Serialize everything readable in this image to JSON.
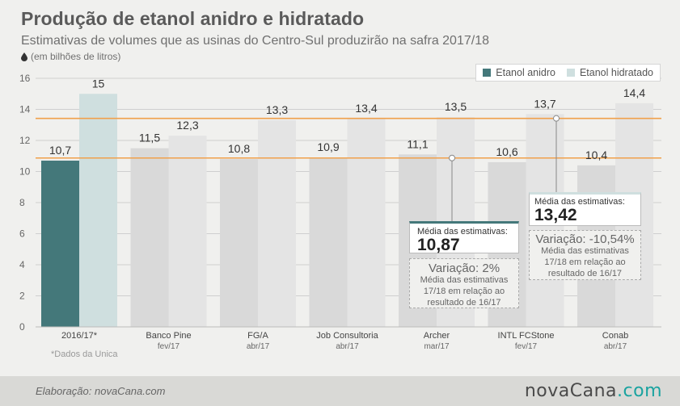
{
  "header": {
    "title": "Produção de etanol anidro e hidratado",
    "subtitle": "Estimativas de volumes que as usinas do Centro-Sul produzirão na safra 2017/18",
    "unit": "(em bilhões de litros)"
  },
  "legend": {
    "anidro": "Etanol anidro",
    "hidratado": "Etanol hidratado"
  },
  "note": "*Dados da Unica",
  "callouts": {
    "anidro": {
      "label": "Média das estimativas:",
      "value": "10,87",
      "variation_title": "Variação: 2%",
      "variation_text_1": "Média das estimativas",
      "variation_text_2": "17/18 em relação ao",
      "variation_text_3": "resultado de 16/17"
    },
    "hidratado": {
      "label": "Média das estimativas:",
      "value": "13,42",
      "variation_title": "Variação: -10,54%",
      "variation_text_1": "Média das estimativas",
      "variation_text_2": "17/18 em relação ao",
      "variation_text_3": "resultado de 16/17"
    }
  },
  "footer": {
    "credit": "Elaboração: novaCana.com",
    "brand_main": "novaCana",
    "brand_suffix": ".com"
  },
  "colors": {
    "anidro_highlight": "#44787a",
    "hidratado_highlight": "#cfdfdf",
    "anidro": "#d9d9d9",
    "hidratado": "#e4e4e4",
    "reference_line": "#f0a04b",
    "grid": "#cfcfcf"
  },
  "chart_data": {
    "type": "bar",
    "categories": [
      "2016/17*",
      "Banco Pine",
      "FG/A",
      "Job Consultoria",
      "Archer",
      "INTL FCStone",
      "Conab"
    ],
    "category_dates": [
      "",
      "fev/17",
      "abr/17",
      "abr/17",
      "mar/17",
      "fev/17",
      "abr/17"
    ],
    "series": [
      {
        "name": "Etanol anidro",
        "values": [
          10.7,
          11.5,
          10.8,
          10.9,
          11.1,
          10.6,
          10.4
        ],
        "labels": [
          "10,7",
          "11,5",
          "10,8",
          "10,9",
          "11,1",
          "10,6",
          "10,4"
        ]
      },
      {
        "name": "Etanol hidratado",
        "values": [
          15,
          12.3,
          13.3,
          13.4,
          13.5,
          13.7,
          14.4
        ],
        "labels": [
          "15",
          "12,3",
          "13,3",
          "13,4",
          "13,5",
          "13,7",
          "14,4"
        ]
      }
    ],
    "reference_lines": [
      10.87,
      13.42
    ],
    "ylim": [
      0,
      16
    ],
    "yticks": [
      0,
      2,
      4,
      6,
      8,
      10,
      12,
      14,
      16
    ],
    "grid": true,
    "legend_position": "top-right"
  }
}
